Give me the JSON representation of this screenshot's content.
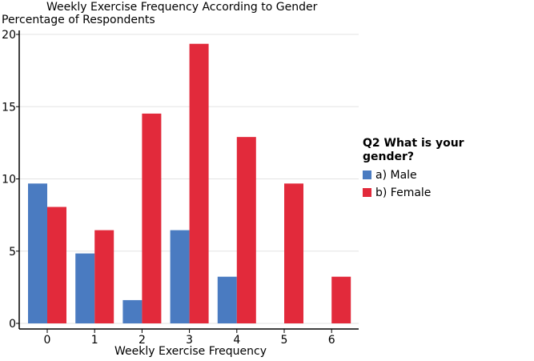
{
  "chart_data": {
    "type": "bar",
    "title": "Weekly Exercise Frequency According to Gender",
    "ylabel": "Percentage of Respondents",
    "xlabel": "Weekly Exercise Frequency",
    "categories": [
      "0",
      "1",
      "2",
      "3",
      "4",
      "5",
      "6"
    ],
    "ylim": [
      0,
      20
    ],
    "yticks": [
      0,
      5,
      10,
      15,
      20
    ],
    "grid": true,
    "legend": {
      "title": "Q2 What is your gender?",
      "placement": "right"
    },
    "series": [
      {
        "name": "a) Male",
        "color": "#4a7bc1",
        "values": [
          9.68,
          4.84,
          1.61,
          6.45,
          3.23,
          0,
          0
        ]
      },
      {
        "name": "b) Female",
        "color": "#e22a3b",
        "values": [
          8.06,
          6.45,
          14.52,
          19.35,
          12.9,
          9.68,
          3.23
        ]
      }
    ]
  }
}
